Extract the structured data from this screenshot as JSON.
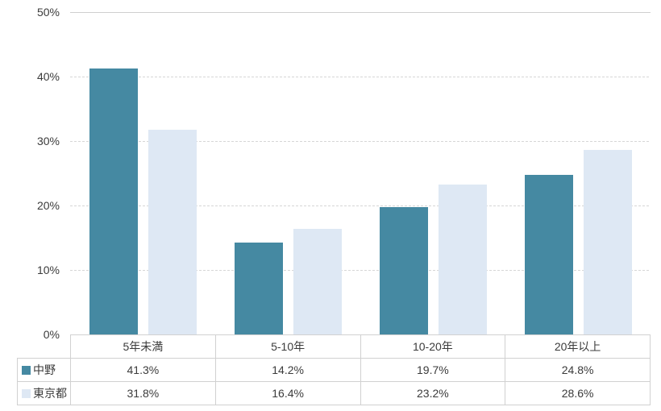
{
  "chart_data": {
    "type": "bar",
    "title": "",
    "categories": [
      "5年未満",
      "5-10年",
      "10-20年",
      "20年以上"
    ],
    "series": [
      {
        "name": "中野",
        "color": "#4589A2",
        "values": [
          41.3,
          14.2,
          19.7,
          24.8
        ],
        "labels": [
          "41.3%",
          "14.2%",
          "19.7%",
          "24.8%"
        ]
      },
      {
        "name": "東京都",
        "color": "#DEE8F4",
        "values": [
          31.8,
          16.4,
          23.2,
          28.6
        ],
        "labels": [
          "31.8%",
          "16.4%",
          "23.2%",
          "28.6%"
        ]
      }
    ],
    "xlabel": "",
    "ylabel": "",
    "ylim": [
      0,
      50
    ],
    "yticks": [
      "0%",
      "10%",
      "20%",
      "30%",
      "40%",
      "50%"
    ],
    "grid": true,
    "gridline_style": "dashed",
    "legend_position": "data-table-left",
    "colors": {
      "grid": "#D6D6D6",
      "table_border": "#D1D1D1",
      "text": "#3B3B3B",
      "background": "#FFFFFF"
    }
  }
}
